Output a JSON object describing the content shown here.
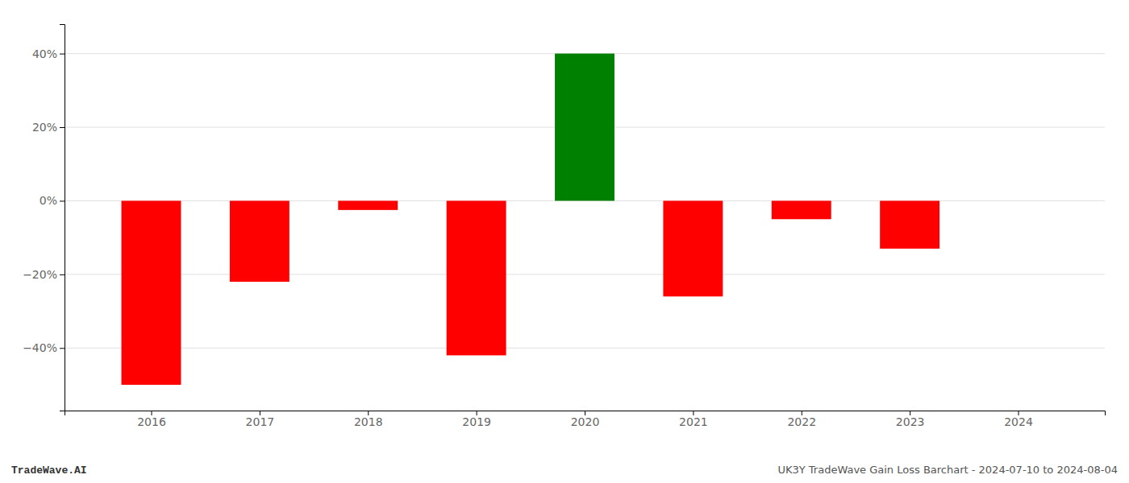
{
  "chart_data": {
    "type": "bar",
    "x": [
      2016,
      2017,
      2018,
      2019,
      2020,
      2021,
      2022,
      2023,
      2024
    ],
    "values": [
      -50.0,
      -22.0,
      -2.5,
      -42.0,
      40.0,
      -26.0,
      -5.0,
      -13.0,
      null
    ],
    "colors": [
      "#ff0000",
      "#ff0000",
      "#ff0000",
      "#ff0000",
      "#008000",
      "#ff0000",
      "#ff0000",
      "#ff0000",
      null
    ],
    "xlim": [
      2015.2,
      2024.8
    ],
    "xticks": [
      2016,
      2017,
      2018,
      2019,
      2020,
      2021,
      2022,
      2023,
      2024
    ],
    "ylim": [
      -57,
      48
    ],
    "yticks": [
      {
        "value": -40,
        "label": "−40%"
      },
      {
        "value": -20,
        "label": "−20%"
      },
      {
        "value": 0,
        "label": "0%"
      },
      {
        "value": 20,
        "label": "20%"
      },
      {
        "value": 40,
        "label": "40%"
      }
    ],
    "grid": true,
    "annotations": [
      "TradeWave.AI",
      "UK3Y TradeWave Gain Loss Barchart - 2024-07-10 to 2024-08-04"
    ]
  }
}
